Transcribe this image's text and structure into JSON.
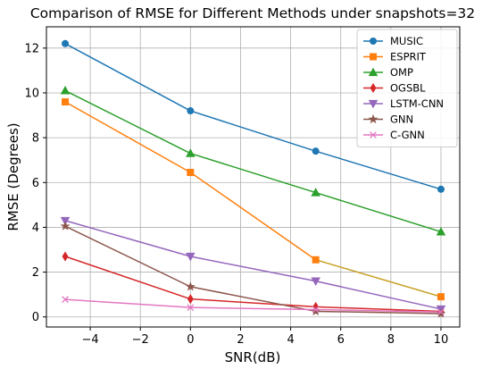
{
  "chart_data": {
    "type": "line",
    "title": "Comparison of RMSE for Different Methods under snapshots=32",
    "xlabel": "SNR(dB)",
    "ylabel": "RMSE (Degrees)",
    "xlim": [
      -5.75,
      10.75
    ],
    "ylim": [
      -0.45,
      12.95
    ],
    "x": [
      -5,
      0,
      5,
      10
    ],
    "xticks": [
      -4,
      -2,
      0,
      2,
      4,
      6,
      8,
      10
    ],
    "yticks": [
      0,
      2,
      4,
      6,
      8,
      10,
      12
    ],
    "grid": true,
    "legend_position": "top-right",
    "series": [
      {
        "name": "MUSIC",
        "values": [
          12.2,
          9.2,
          7.4,
          5.7
        ],
        "color": "#1f77b4",
        "marker": "circle"
      },
      {
        "name": "ESPRIT",
        "values": [
          9.6,
          6.45,
          2.55,
          0.9
        ],
        "color": "#ff7f0e",
        "marker": "square",
        "segment_colors": [
          "#ff7f0e",
          "#ff7f0e",
          "#c9a227"
        ]
      },
      {
        "name": "OMP",
        "values": [
          10.1,
          7.3,
          5.55,
          3.8
        ],
        "color": "#2ca02c",
        "marker": "triangle-up"
      },
      {
        "name": "OGSBL",
        "values": [
          2.7,
          0.8,
          0.45,
          0.25
        ],
        "color": "#d62728",
        "marker": "thin-diamond"
      },
      {
        "name": "LSTM-CNN",
        "values": [
          4.3,
          2.7,
          1.6,
          0.35
        ],
        "color": "#9467bd",
        "marker": "triangle-down"
      },
      {
        "name": "GNN",
        "values": [
          4.05,
          1.35,
          0.25,
          0.15
        ],
        "color": "#8c564b",
        "marker": "star"
      },
      {
        "name": "C-GNN",
        "values": [
          0.78,
          0.42,
          0.33,
          0.22
        ],
        "color": "#e377c2",
        "marker": "x"
      }
    ]
  }
}
